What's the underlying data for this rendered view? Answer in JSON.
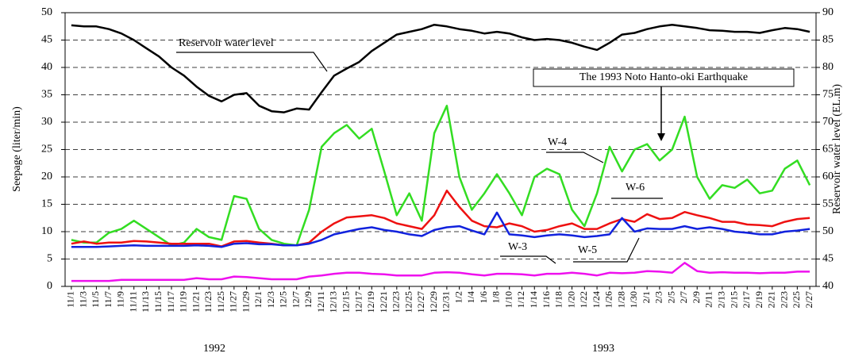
{
  "chart_data": {
    "type": "line",
    "y_label": "Seepage (liter/min)",
    "y2_label": "Reservoir water level (EL.m)",
    "categories": [
      "11/1",
      "11/3",
      "11/5",
      "11/7",
      "11/9",
      "11/11",
      "11/13",
      "11/15",
      "11/17",
      "11/19",
      "11/21",
      "11/23",
      "11/25",
      "11/27",
      "11/29",
      "12/1",
      "12/3",
      "12/5",
      "12/7",
      "12/9",
      "12/11",
      "12/13",
      "12/15",
      "12/17",
      "12/19",
      "12/21",
      "12/23",
      "12/25",
      "12/27",
      "12/29",
      "12/31",
      "1/2",
      "1/4",
      "1/6",
      "1/8",
      "1/10",
      "1/12",
      "1/14",
      "1/16",
      "1/18",
      "1/20",
      "1/22",
      "1/24",
      "1/26",
      "1/28",
      "1/30",
      "2/1",
      "2/3",
      "2/5",
      "2/7",
      "2/9",
      "2/11",
      "2/13",
      "2/15",
      "2/17",
      "2/19",
      "2/21",
      "2/23",
      "2/25",
      "2/27"
    ],
    "year_labels": [
      "1992",
      "1993"
    ],
    "ylim": [
      0,
      50
    ],
    "yticks": [
      0,
      5,
      10,
      15,
      20,
      25,
      30,
      35,
      40,
      45,
      50
    ],
    "y2lim": [
      40,
      90
    ],
    "y2ticks": [
      40,
      45,
      50,
      55,
      60,
      65,
      70,
      75,
      80,
      85,
      90
    ],
    "grid": true,
    "annotation": "The 1993 Noto Hanto-oki Earthquake",
    "series": [
      {
        "name": "Reservoir water level",
        "color": "#000000",
        "axis": "y2",
        "values": [
          87.7,
          87.5,
          87.5,
          87,
          86.2,
          85,
          83.5,
          82,
          80,
          78.5,
          76.5,
          74.8,
          73.8,
          75,
          75.3,
          73,
          72,
          71.8,
          72.5,
          72.3,
          75.5,
          78.5,
          79.8,
          81,
          83,
          84.5,
          86,
          86.5,
          87,
          87.8,
          87.5,
          87,
          86.7,
          86.2,
          86.5,
          86.2,
          85.5,
          85,
          85.2,
          85,
          84.5,
          83.8,
          83.2,
          84.5,
          86,
          86.3,
          87,
          87.5,
          87.8,
          87.5,
          87.2,
          86.8,
          86.7,
          86.5,
          86.5,
          86.3,
          86.8,
          87.2,
          87,
          86.5
        ]
      },
      {
        "name": "W-4",
        "color": "#33dd22",
        "values": [
          8.5,
          8,
          8,
          9.8,
          10.5,
          12,
          10.5,
          9,
          7.5,
          8,
          10.5,
          9,
          8.5,
          16.5,
          16,
          10.5,
          8.5,
          7.8,
          7.5,
          14,
          25.5,
          28,
          29.5,
          27,
          28.8,
          21,
          13,
          17,
          12,
          28,
          33,
          20,
          14,
          17,
          20.5,
          17,
          13,
          20,
          21.5,
          20.5,
          14,
          11,
          17,
          25.5,
          21,
          25,
          26,
          23,
          25,
          31,
          20,
          16,
          18.5,
          18,
          19.5,
          17,
          17.5,
          21.5,
          23,
          18.5
        ]
      },
      {
        "name": "W-6",
        "color": "#ee1111",
        "values": [
          7.8,
          8.2,
          7.8,
          8,
          8,
          8.3,
          8.2,
          8,
          7.8,
          7.8,
          7.8,
          7.8,
          7.3,
          8.2,
          8.3,
          8,
          7.8,
          7.5,
          7.5,
          8,
          10,
          11.5,
          12.6,
          12.8,
          13,
          12.5,
          11.5,
          11,
          10.5,
          13,
          17.5,
          14.5,
          12,
          11,
          10.8,
          11.5,
          11,
          10,
          10.3,
          11,
          11.5,
          10.5,
          10.5,
          11.5,
          12.3,
          11.8,
          13.2,
          12.3,
          12.5,
          13.6,
          13,
          12.5,
          11.8,
          11.8,
          11.3,
          11.2,
          11,
          11.8,
          12.3,
          12.5
        ]
      },
      {
        "name": "W-3",
        "color": "#ee11ee",
        "values": [
          1,
          1,
          1,
          1,
          1.2,
          1.2,
          1.2,
          1.2,
          1.2,
          1.2,
          1.5,
          1.3,
          1.3,
          1.8,
          1.7,
          1.5,
          1.3,
          1.3,
          1.3,
          1.8,
          2,
          2.3,
          2.5,
          2.5,
          2.3,
          2.2,
          2,
          2,
          2,
          2.5,
          2.6,
          2.5,
          2.2,
          2,
          2.3,
          2.3,
          2.2,
          2,
          2.3,
          2.3,
          2.5,
          2.3,
          2,
          2.5,
          2.4,
          2.5,
          2.8,
          2.7,
          2.5,
          4.3,
          2.8,
          2.5,
          2.6,
          2.5,
          2.5,
          2.4,
          2.5,
          2.5,
          2.7,
          2.7
        ]
      },
      {
        "name": "W-5",
        "color": "#1122dd",
        "values": [
          7.2,
          7.2,
          7.2,
          7.3,
          7.4,
          7.5,
          7.4,
          7.4,
          7.4,
          7.4,
          7.5,
          7.4,
          7.2,
          7.8,
          7.9,
          7.7,
          7.7,
          7.5,
          7.5,
          7.8,
          8.5,
          9.5,
          10,
          10.5,
          10.8,
          10.3,
          10,
          9.5,
          9.2,
          10.3,
          10.8,
          11,
          10.2,
          9.5,
          13.5,
          9.5,
          9.3,
          9,
          9.3,
          9.5,
          9.3,
          9,
          9.2,
          9.5,
          12.5,
          10,
          10.6,
          10.5,
          10.5,
          11,
          10.5,
          10.8,
          10.5,
          10,
          9.8,
          9.5,
          9.5,
          10,
          10.2,
          10.5
        ]
      }
    ]
  }
}
